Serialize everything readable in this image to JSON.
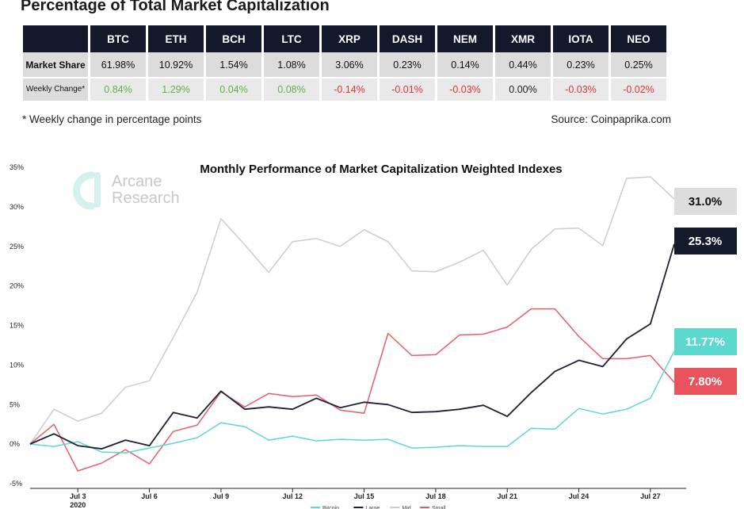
{
  "table": {
    "title": "Percentage of Total Market Capitalization",
    "columns": [
      "BTC",
      "ETH",
      "BCH",
      "LTC",
      "XRP",
      "DASH",
      "NEM",
      "XMR",
      "IOTA",
      "NEO"
    ],
    "rows": [
      {
        "label": "Market Share",
        "values": [
          "61.98%",
          "10.92%",
          "1.54%",
          "1.08%",
          "3.06%",
          "0.23%",
          "0.14%",
          "0.44%",
          "0.23%",
          "0.25%"
        ]
      },
      {
        "label": "Weekly Change*",
        "values": [
          "0.84%",
          "1.29%",
          "0.04%",
          "0.08%",
          "-0.14%",
          "-0.01%",
          "-0.03%",
          "0.00%",
          "-0.03%",
          "-0.02%"
        ]
      }
    ],
    "footnote": "* Weekly change in percentage points",
    "source": "Source: Coinpaprika.com",
    "colors": {
      "header_bg": "#13192b",
      "positive": "#5fb246",
      "negative": "#e0343b"
    }
  },
  "watermark": {
    "line1": "Arcane",
    "line2": "Research",
    "icon": "arcane-logo-icon"
  },
  "chart_data": {
    "type": "line",
    "title": "Monthly Performance of Market Capitalization Weighted Indexes",
    "x_tick_labels": [
      "Jul 3",
      "Jul 6",
      "Jul 9",
      "Jul 12",
      "Jul 15",
      "Jul 18",
      "Jul 21",
      "Jul 24",
      "Jul 27"
    ],
    "x_tick_sublabel": "2020",
    "y_tick_labels": [
      "35%",
      "30%",
      "25%",
      "20%",
      "15%",
      "10%",
      "5%",
      "0%",
      "-5%"
    ],
    "ylim": [
      -5,
      35
    ],
    "legend_entries": [
      "Bitcoin",
      "Large",
      "Mid",
      "Small"
    ],
    "legend_placement": "bottom",
    "series": [
      {
        "name": "Bitcoin",
        "color": "#5dd8cf",
        "end_label": "11.77%",
        "x": [
          "2020-07-01",
          "2020-07-02",
          "2020-07-03",
          "2020-07-04",
          "2020-07-05",
          "2020-07-06",
          "2020-07-07",
          "2020-07-08",
          "2020-07-09",
          "2020-07-10",
          "2020-07-11",
          "2020-07-12",
          "2020-07-13",
          "2020-07-14",
          "2020-07-15",
          "2020-07-16",
          "2020-07-17",
          "2020-07-18",
          "2020-07-19",
          "2020-07-20",
          "2020-07-21",
          "2020-07-22",
          "2020-07-23",
          "2020-07-24",
          "2020-07-25",
          "2020-07-26",
          "2020-07-27",
          "2020-07-28"
        ],
        "values": [
          0.0,
          -0.3,
          0.3,
          -1.0,
          -1.1,
          -0.5,
          0.1,
          0.8,
          2.7,
          2.2,
          0.5,
          1.0,
          0.4,
          0.6,
          0.5,
          0.6,
          -0.5,
          -0.4,
          -0.2,
          -0.3,
          -0.3,
          2.0,
          1.9,
          4.5,
          3.8,
          4.4,
          5.8,
          11.77
        ]
      },
      {
        "name": "Large",
        "color": "#1c2233",
        "end_label": "25.3%",
        "x": [
          "2020-07-01",
          "2020-07-02",
          "2020-07-03",
          "2020-07-04",
          "2020-07-05",
          "2020-07-06",
          "2020-07-07",
          "2020-07-08",
          "2020-07-09",
          "2020-07-10",
          "2020-07-11",
          "2020-07-12",
          "2020-07-13",
          "2020-07-14",
          "2020-07-15",
          "2020-07-16",
          "2020-07-17",
          "2020-07-18",
          "2020-07-19",
          "2020-07-20",
          "2020-07-21",
          "2020-07-22",
          "2020-07-23",
          "2020-07-24",
          "2020-07-25",
          "2020-07-26",
          "2020-07-27",
          "2020-07-28"
        ],
        "values": [
          0.0,
          1.3,
          -0.2,
          -0.6,
          0.5,
          -0.2,
          4.0,
          3.3,
          6.7,
          4.4,
          4.7,
          4.4,
          5.8,
          4.6,
          5.3,
          5.0,
          4.0,
          4.1,
          4.4,
          4.9,
          3.5,
          6.5,
          9.2,
          10.6,
          9.8,
          13.3,
          15.2,
          25.3
        ]
      },
      {
        "name": "Mid",
        "color": "#cccccc",
        "end_label": "31.0%",
        "x": [
          "2020-07-01",
          "2020-07-02",
          "2020-07-03",
          "2020-07-04",
          "2020-07-05",
          "2020-07-06",
          "2020-07-07",
          "2020-07-08",
          "2020-07-09",
          "2020-07-10",
          "2020-07-11",
          "2020-07-12",
          "2020-07-13",
          "2020-07-14",
          "2020-07-15",
          "2020-07-16",
          "2020-07-17",
          "2020-07-18",
          "2020-07-19",
          "2020-07-20",
          "2020-07-21",
          "2020-07-22",
          "2020-07-23",
          "2020-07-24",
          "2020-07-25",
          "2020-07-26",
          "2020-07-27",
          "2020-07-28"
        ],
        "values": [
          0.0,
          4.4,
          2.9,
          3.9,
          7.2,
          8.0,
          13.5,
          19.2,
          28.5,
          25.2,
          21.7,
          25.6,
          26.0,
          25.0,
          27.1,
          25.6,
          21.9,
          21.8,
          23.0,
          24.5,
          20.1,
          24.6,
          27.2,
          27.3,
          25.1,
          33.6,
          33.8,
          31.0
        ]
      },
      {
        "name": "Small",
        "color": "#e85d69",
        "end_label": "7.80%",
        "x": [
          "2020-07-01",
          "2020-07-02",
          "2020-07-03",
          "2020-07-04",
          "2020-07-05",
          "2020-07-06",
          "2020-07-07",
          "2020-07-08",
          "2020-07-09",
          "2020-07-10",
          "2020-07-11",
          "2020-07-12",
          "2020-07-13",
          "2020-07-14",
          "2020-07-15",
          "2020-07-16",
          "2020-07-17",
          "2020-07-18",
          "2020-07-19",
          "2020-07-20",
          "2020-07-21",
          "2020-07-22",
          "2020-07-23",
          "2020-07-24",
          "2020-07-25",
          "2020-07-26",
          "2020-07-27",
          "2020-07-28"
        ],
        "values": [
          0.0,
          2.5,
          -3.4,
          -2.4,
          -0.7,
          -2.5,
          1.6,
          2.4,
          6.6,
          4.7,
          6.4,
          6.0,
          6.2,
          4.3,
          3.9,
          14.0,
          11.2,
          11.3,
          13.8,
          13.9,
          14.8,
          17.1,
          17.1,
          13.6,
          10.8,
          10.8,
          11.2,
          7.8
        ]
      }
    ],
    "end_label_colors": {
      "Bitcoin": {
        "bg": "#5dd8cf",
        "fg": "#ffffff"
      },
      "Large": {
        "bg": "#141b2c",
        "fg": "#ffffff"
      },
      "Mid": {
        "bg": "#dddddd",
        "fg": "#111111"
      },
      "Small": {
        "bg": "#e8535e",
        "fg": "#ffffff"
      }
    }
  }
}
